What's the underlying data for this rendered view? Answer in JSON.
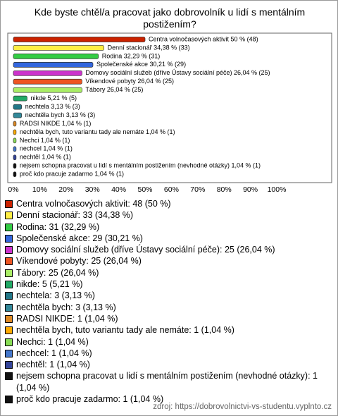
{
  "chart_data": {
    "type": "bar",
    "orientation": "horizontal",
    "title": "Kde byste chtěl/a pracovat jako dobrovolník u lidí s mentálním postižením?",
    "values": [
      50,
      34.38,
      32.29,
      30.21,
      26.04,
      26.04,
      26.04,
      5.21,
      3.13,
      3.13,
      1.04,
      1.04,
      1.04,
      1.04,
      1.04,
      1.04,
      1.04
    ],
    "value_labels": [
      "Centra volnočasových aktivit 50 % (48)",
      "Denní stacionář 34,38 % (33)",
      "Rodina 32,29 % (31)",
      "Společenské akce 30,21 % (29)",
      "Domovy sociální služeb (dříve Ústavy sociální péče) 26,04 % (25)",
      "Víkendové pobyty 26,04 % (25)",
      "Tábory 26,04 % (25)",
      "nikde 5,21 % (5)",
      "nechtela 3,13 % (3)",
      "nechtěla bych 3,13 % (3)",
      "RADSI NIKDE 1,04 % (1)",
      "nechtěla bych, tuto variantu tady ale nemáte 1,04 % (1)",
      "Nechci 1,04 % (1)",
      "nechcel 1,04 % (1)",
      "nechtěl 1,04 % (1)",
      "nejsem schopna pracovat u lidí s mentálním postižením (nevhodné otázky) 1,04 % (1)",
      "proč kdo pracuje zadarmo 1,04 % (1)"
    ],
    "legend_labels": [
      "Centra volnočasových aktivit: 48 (50 %)",
      "Denní stacionář: 33 (34,38 %)",
      "Rodina: 31 (32,29 %)",
      "Společenské akce: 29 (30,21 %)",
      "Domovy sociální služeb (dříve Ústavy sociální péče): 25 (26,04 %)",
      "Víkendové pobyty: 25 (26,04 %)",
      "Tábory: 25 (26,04 %)",
      "nikde: 5 (5,21 %)",
      "nechtela: 3 (3,13 %)",
      "nechtěla bych: 3 (3,13 %)",
      "RADSI NIKDE: 1 (1,04 %)",
      "nechtěla bych, tuto variantu tady ale nemáte: 1 (1,04 %)",
      "Nechci: 1 (1,04 %)",
      "nechcel: 1 (1,04 %)",
      "nechtěl: 1 (1,04 %)",
      "nejsem schopna pracovat u lidí s mentálním postižením (nevhodné otázky): 1 (1,04 %)",
      "proč kdo pracuje zadarmo: 1 (1,04 %)"
    ],
    "colors": [
      "#cc2200",
      "#ffee44",
      "#33cc44",
      "#3366dd",
      "#cc33cc",
      "#ee5522",
      "#aaee66",
      "#22aa66",
      "#227788",
      "#338899",
      "#dd8822",
      "#ffaa00",
      "#88dd55",
      "#4477cc",
      "#334499",
      "#111111",
      "#111111"
    ],
    "xlim": [
      0,
      100
    ],
    "xticks": [
      {
        "value": 0,
        "label": "0%"
      },
      {
        "value": 10,
        "label": "10%"
      },
      {
        "value": 20,
        "label": "20%"
      },
      {
        "value": 30,
        "label": "30%"
      },
      {
        "value": 40,
        "label": "40%"
      },
      {
        "value": 50,
        "label": "50%"
      },
      {
        "value": 60,
        "label": "60%"
      },
      {
        "value": 70,
        "label": "70%"
      },
      {
        "value": 80,
        "label": "80%"
      },
      {
        "value": 90,
        "label": "90%"
      },
      {
        "value": 100,
        "label": "100%"
      }
    ],
    "source": "zdroj: https://dobrovolnictvi-vs-studentu.vyplnto.cz"
  }
}
